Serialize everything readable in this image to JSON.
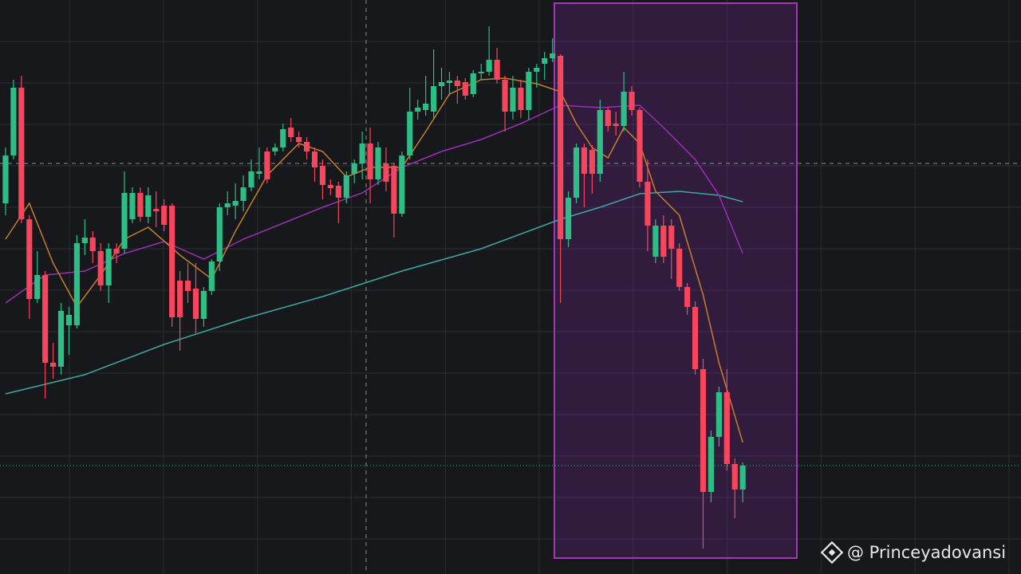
{
  "chart_data": {
    "type": "candlestick",
    "watermark": "@ Princeyadovansi",
    "up_color": "#2ebd85",
    "down_color": "#f6465d",
    "grid": true,
    "xlim": [
      -0.7,
      128.1
    ],
    "ylim": [
      0,
      72
    ],
    "open": [
      46.5,
      52.5,
      61,
      44.5,
      34.5,
      37.5,
      26.5,
      26,
      31.2,
      31.2,
      41.5,
      42.2,
      40.5,
      36.2,
      40.8,
      40.8,
      44.5,
      47.8,
      44.8,
      45.8,
      46.2,
      46.2,
      36.8,
      36.8,
      35.8,
      32,
      35.5,
      39.2,
      46,
      46.2,
      46.8,
      48.5,
      50.2,
      53,
      53,
      53.5,
      56,
      54.8,
      54.2,
      53,
      51.2,
      48.8,
      48.7,
      47.2,
      50.2,
      51.5,
      54,
      49.5,
      51.5,
      51.2,
      45.2,
      52.5,
      58,
      58.2,
      58,
      61.2,
      61.6,
      61.9,
      61.7,
      60.2,
      62.8,
      63,
      64.5,
      62,
      58,
      61,
      58.2,
      63,
      64,
      64.7,
      65,
      42,
      47.2,
      53.5,
      53.2,
      50.2,
      58.2,
      56.5,
      56.2,
      60.5,
      58.2,
      49.2,
      39.8,
      43.7,
      43.7,
      40.8,
      36,
      33.5,
      25.7,
      10.3,
      17.2,
      22.8,
      13.8,
      10.6
    ],
    "high": [
      53.5,
      62,
      62.5,
      45,
      40.5,
      38,
      29,
      34,
      33.5,
      42.5,
      44.5,
      43,
      41.5,
      41.5,
      41.5,
      50.5,
      48.5,
      48.5,
      48.5,
      48,
      47,
      46.5,
      38,
      39,
      39,
      36,
      39.5,
      46.5,
      48,
      49,
      50,
      52,
      53.5,
      53.5,
      54,
      56.5,
      57.2,
      55.5,
      54.8,
      53.5,
      52,
      49.5,
      49.2,
      50.5,
      52,
      55.5,
      56,
      54.2,
      53.5,
      51.5,
      53,
      61,
      59.5,
      62.5,
      65.8,
      63.5,
      63,
      62.5,
      62.2,
      63.2,
      64,
      68.7,
      66,
      62.5,
      62.5,
      62,
      63.5,
      64,
      65.5,
      67.2,
      65.2,
      48,
      54,
      54,
      53.8,
      59.5,
      58.5,
      58,
      63,
      61.2,
      58.5,
      52,
      44.5,
      45,
      44.5,
      41.5,
      36.5,
      34.2,
      27,
      18,
      23.5,
      25.7,
      14.5,
      14
    ],
    "low": [
      45,
      52,
      44,
      32,
      34,
      22,
      24.5,
      25,
      27.5,
      30.8,
      40,
      39,
      35.5,
      34,
      39,
      40.2,
      44,
      44.2,
      44,
      43.5,
      43,
      31,
      28,
      34,
      30.2,
      31,
      35,
      38,
      45,
      44.5,
      45.5,
      48,
      49.5,
      49,
      52.5,
      53,
      54.2,
      53.5,
      52,
      49.2,
      47,
      47.5,
      44,
      46.5,
      49,
      49.5,
      46.5,
      48.8,
      48,
      42.2,
      44.8,
      52,
      57,
      57.5,
      57,
      59.5,
      60,
      59,
      59.5,
      59.8,
      62,
      62.5,
      61.5,
      55.5,
      57,
      57.2,
      57,
      61,
      62,
      64.2,
      34,
      41,
      46.5,
      46,
      47.7,
      49.2,
      55.5,
      55,
      55.5,
      57.5,
      48.5,
      40.5,
      39,
      39,
      37,
      35.5,
      32.5,
      25,
      3.2,
      9,
      16,
      13,
      7,
      9
    ],
    "close": [
      52.5,
      61,
      44.5,
      34.5,
      37.5,
      26.5,
      26,
      33,
      32.5,
      41.5,
      42.2,
      40.5,
      36.2,
      40.8,
      40.2,
      47.8,
      47.8,
      44.8,
      47.5,
      45.5,
      43.8,
      32.2,
      32.2,
      35.5,
      32,
      35.5,
      39.2,
      46,
      46.5,
      46.8,
      48.5,
      50.5,
      50.5,
      49.5,
      53.5,
      55.8,
      54.8,
      54.2,
      53,
      51,
      48.8,
      48.4,
      47.2,
      50,
      51.5,
      54,
      49.5,
      53.5,
      49.2,
      45.2,
      52.5,
      58,
      58.5,
      59,
      61.2,
      61.7,
      61.9,
      61.2,
      60,
      62.8,
      63,
      64.5,
      62,
      58,
      61,
      58.2,
      63,
      63.5,
      64.7,
      65.3,
      42,
      47.2,
      53.5,
      50.2,
      50.2,
      58.2,
      56.2,
      56.2,
      60.5,
      58.2,
      49.2,
      43.7,
      43.7,
      39.8,
      40.8,
      36,
      33.5,
      25.7,
      10.3,
      17.2,
      22.8,
      13.8,
      10.6,
      13.6
    ],
    "lines": [
      {
        "color": "#3fa7a0",
        "x": [
          0,
          10,
          20,
          30,
          40,
          50,
          60,
          70,
          75,
          80,
          85,
          90,
          93
        ],
        "values": [
          22.6,
          25,
          28.8,
          32,
          34.8,
          38,
          40.8,
          44.5,
          46,
          47.7,
          48,
          47.5,
          46.7
        ]
      },
      {
        "color": "#9c2fb4",
        "x": [
          0,
          5,
          10,
          15,
          20,
          25,
          30,
          35,
          40,
          45,
          50,
          55,
          60,
          65,
          70,
          75,
          80,
          83,
          87,
          90,
          93
        ],
        "values": [
          34,
          37.5,
          38,
          40.2,
          41.7,
          39.5,
          42,
          44,
          46,
          47.8,
          51,
          53,
          54.5,
          56.5,
          58.8,
          58.5,
          58.8,
          56,
          52,
          47.5,
          40.2
        ]
      },
      {
        "color": "#c87d2c",
        "x": [
          0,
          3,
          6,
          9,
          12,
          15,
          18,
          22,
          26,
          29,
          33,
          37,
          40,
          43,
          46,
          50,
          53,
          56,
          60,
          63,
          67,
          70,
          72,
          74,
          76,
          78,
          80,
          82,
          85,
          88,
          90,
          93
        ],
        "values": [
          42,
          46.5,
          39,
          33.5,
          37.5,
          42,
          43.5,
          40,
          37,
          43,
          50,
          54,
          53,
          49.8,
          51,
          51,
          55.5,
          60.2,
          62,
          62.2,
          61.5,
          60.5,
          56.5,
          53.5,
          52.2,
          56,
          54,
          48,
          45,
          35,
          26.5,
          16.5
        ]
      }
    ]
  }
}
